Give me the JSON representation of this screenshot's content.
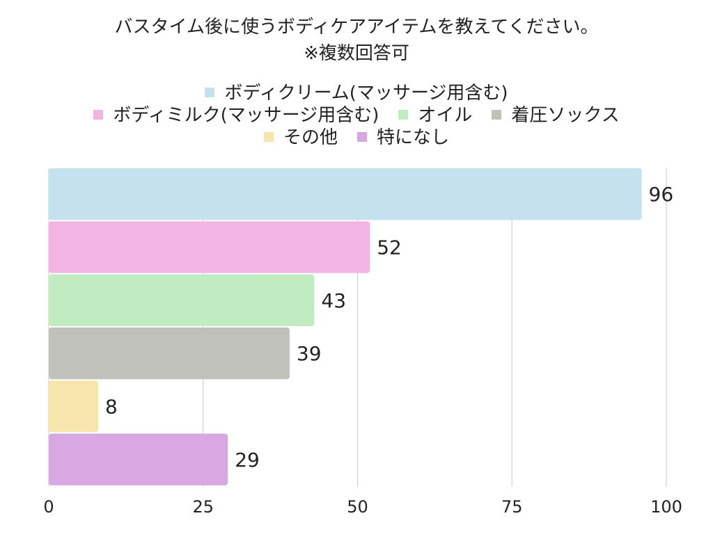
{
  "chart_data": {
    "type": "bar",
    "orientation": "horizontal",
    "title": "バスタイム後に使うボディケアアイテムを教えてください。",
    "subtitle": "※複数回答可",
    "categories": [
      "ボディクリーム(マッサージ用含む)",
      "ボディミルク(マッサージ用含む)",
      "オイル",
      "着圧ソックス",
      "その他",
      "特になし"
    ],
    "values": [
      96,
      52,
      43,
      39,
      8,
      29
    ],
    "colors": [
      "#c5e1ed",
      "#f1b4e3",
      "#c1ebc0",
      "#c1c1bb",
      "#f6e5ad",
      "#d7a8e2"
    ],
    "xlim": [
      0,
      100
    ],
    "xticks": [
      0,
      25,
      50,
      75,
      100
    ],
    "grid": "vertical",
    "legend_position": "top",
    "legend_rows": [
      [
        0
      ],
      [
        1,
        2,
        3
      ],
      [
        4,
        5
      ]
    ],
    "data_labels": true
  }
}
